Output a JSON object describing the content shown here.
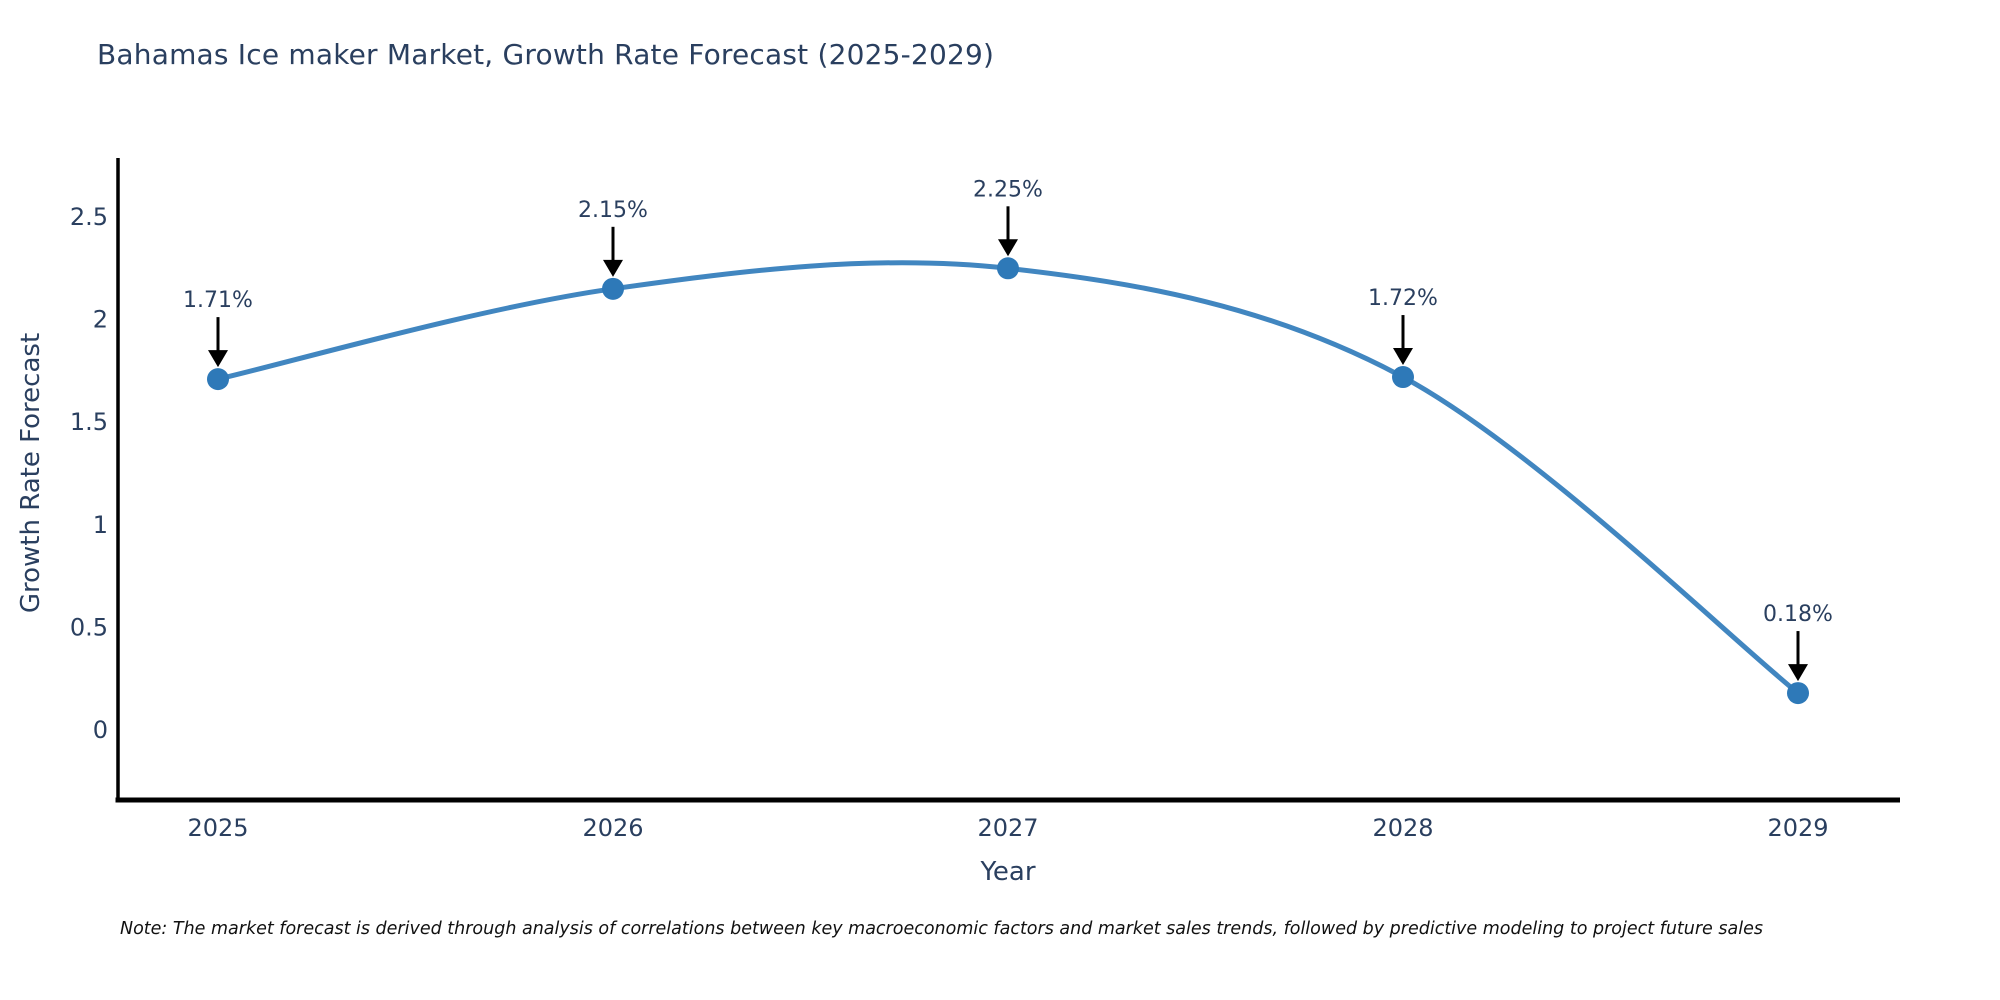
{
  "title": "Bahamas Ice maker Market, Growth Rate Forecast (2025-2029)",
  "footnote": "Note: The market forecast is derived through analysis of correlations between key macroeconomic factors and market sales trends, followed by predictive modeling to project future sales",
  "colors": {
    "background": "#ffffff",
    "title_text": "#2a3f5f",
    "axis_text": "#2a3f5f",
    "axis_line": "#000000",
    "line": "#4186c0",
    "marker": "#2e79b8",
    "arrow": "#000000",
    "note_text": "#111111"
  },
  "chart_data": {
    "type": "line",
    "line_shape": "spline",
    "title": "Bahamas Ice maker Market, Growth Rate Forecast (2025-2029)",
    "x": [
      "2025",
      "2026",
      "2027",
      "2028",
      "2029"
    ],
    "y": [
      1.71,
      2.15,
      2.25,
      1.72,
      0.18
    ],
    "point_labels": [
      "1.71%",
      "2.15%",
      "2.25%",
      "1.72%",
      "0.18%"
    ],
    "xlabel": "Year",
    "ylabel": "Growth Rate Forecast",
    "ytick_values": [
      0,
      0.5,
      1,
      1.5,
      2,
      2.5
    ],
    "ytick_labels": [
      "0",
      "0.5",
      "1",
      "1.5",
      "2",
      "2.5"
    ],
    "ylim": [
      -0.34,
      2.78
    ],
    "grid": false,
    "legend_position": "none",
    "annotations": "black down-arrow from each data label to its marker"
  }
}
